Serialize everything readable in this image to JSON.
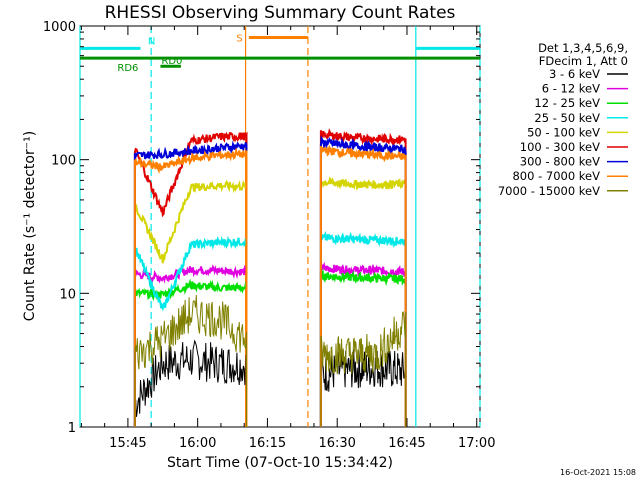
{
  "chart_data": {
    "type": "line",
    "title": "RHESSI Observing Summary Count Rates",
    "xlabel": "Start Time (07-Oct-10 15:34:42)",
    "ylabel": "Count Rate (s⁻¹ detector⁻¹)",
    "x_unit": "minutes after 15:34:42",
    "x_range": [
      0,
      86
    ],
    "yscale": "log",
    "ylim": [
      1,
      1000
    ],
    "x_ticks": [
      {
        "label": "15:45",
        "x": 10.3
      },
      {
        "label": "16:00",
        "x": 25.3
      },
      {
        "label": "16:15",
        "x": 40.3
      },
      {
        "label": "16:30",
        "x": 55.3
      },
      {
        "label": "16:45",
        "x": 70.3
      },
      {
        "label": "17:00",
        "x": 85.3
      }
    ],
    "y_ticks": [
      {
        "label": "1",
        "value": 1
      },
      {
        "label": "10",
        "value": 10
      },
      {
        "label": "100",
        "value": 100
      },
      {
        "label": "1000",
        "value": 1000
      }
    ],
    "legend_header": [
      "Det 1,3,4,5,6,9,",
      "FDecim 1, Att 0"
    ],
    "legend_placement": "right",
    "timestamp": "16-Oct-2021 15:08",
    "segments": [
      [
        11.8,
        35.8
      ],
      [
        51.8,
        70.0
      ]
    ],
    "series": [
      {
        "name": "3 - 6 keV",
        "color": "#000000",
        "segment_values": [
          [
            1.5,
            3.0,
            3.2,
            3.0,
            2.9
          ],
          [
            2.5,
            2.7,
            2.8,
            2.6
          ]
        ]
      },
      {
        "name": "6 - 12 keV",
        "color": "#e000e0",
        "segment_values": [
          [
            14.0,
            13.0,
            15.0,
            14.8,
            14.5
          ],
          [
            15.5,
            15.0,
            14.8,
            14.5
          ]
        ]
      },
      {
        "name": "12 - 25 keV",
        "color": "#00e000",
        "segment_values": [
          [
            10.0,
            9.8,
            11.5,
            11.0,
            11.0
          ],
          [
            13.5,
            13.2,
            13.0,
            12.8
          ]
        ]
      },
      {
        "name": "25 - 50 keV",
        "color": "#00e8e8",
        "segment_values": [
          [
            22.0,
            7.5,
            23.0,
            24.0,
            24.5
          ],
          [
            26.0,
            25.5,
            25.0,
            24.5
          ]
        ]
      },
      {
        "name": "50 - 100 keV",
        "color": "#d4d400",
        "segment_values": [
          [
            46.0,
            18.0,
            62.0,
            64.0,
            63.0
          ],
          [
            68.0,
            66.0,
            65.0,
            66.0
          ]
        ]
      },
      {
        "name": "100 - 300 keV",
        "color": "#e00000",
        "segment_values": [
          [
            120.0,
            40.0,
            138.0,
            148.0,
            150.0
          ],
          [
            155.0,
            147.0,
            143.0,
            142.0
          ]
        ]
      },
      {
        "name": "300 - 800 keV",
        "color": "#0000d8",
        "segment_values": [
          [
            107.0,
            110.0,
            116.0,
            122.0,
            128.0
          ],
          [
            135.0,
            128.0,
            123.0,
            120.0
          ]
        ]
      },
      {
        "name": "800 - 7000 keV",
        "color": "#ff8000",
        "segment_values": [
          [
            95.0,
            88.0,
            102.0,
            108.0,
            110.0
          ],
          [
            118.0,
            112.0,
            108.0,
            105.0
          ]
        ]
      },
      {
        "name": "7000 - 15000 keV",
        "color": "#808000",
        "segment_values": [
          [
            3.5,
            4.5,
            7.0,
            6.5,
            4.5
          ],
          [
            3.5,
            3.5,
            3.5,
            6.0
          ]
        ]
      }
    ],
    "flag_bars": [
      {
        "label": "N",
        "color": "#00e8e8",
        "x_start": 0,
        "x_end": 13.0,
        "y": 680
      },
      {
        "label": "",
        "color": "#00e8e8",
        "x_start": 72.2,
        "x_end": 86,
        "y": 680
      },
      {
        "label": "S",
        "color": "#ff8000",
        "x_start": 36.3,
        "x_end": 49.0,
        "y": 820
      },
      {
        "label": "RD6",
        "color": "#009000",
        "x_start": 0,
        "x_end": 86,
        "y": 575
      },
      {
        "label": "RD0",
        "color": "#009000",
        "x_start": 17.3,
        "x_end": 21.7,
        "y": 500
      }
    ],
    "vlines": [
      {
        "x": 0.0,
        "color": "#00e8e8",
        "style": "solid"
      },
      {
        "x": 15.3,
        "color": "#00e8e8",
        "style": "dashed"
      },
      {
        "x": 35.6,
        "color": "#ff8000",
        "style": "solid"
      },
      {
        "x": 49.0,
        "color": "#ff8000",
        "style": "dashed"
      },
      {
        "x": 72.2,
        "color": "#00e8e8",
        "style": "solid"
      },
      {
        "x": 86.0,
        "color": "#00e8e8",
        "style": "dashed"
      }
    ]
  }
}
